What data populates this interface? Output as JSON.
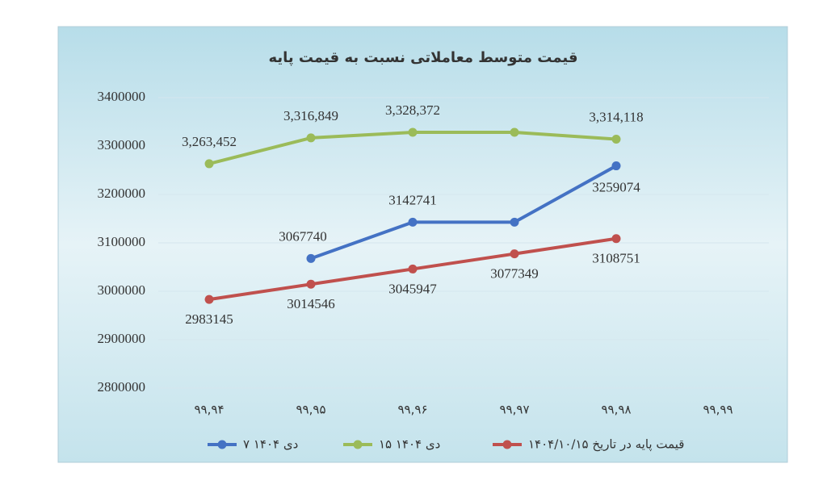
{
  "chart_data": {
    "type": "line",
    "title": "قیمت متوسط معاملاتی نسبت به قیمت پایه",
    "categories": [
      "۹۹,۹۴",
      "۹۹,۹۵",
      "۹۹,۹۶",
      "۹۹,۹۷",
      "۹۹,۹۸",
      "۹۹,۹۹"
    ],
    "series": [
      {
        "name": "۷ دی ۱۴۰۴",
        "color": "#4472c4",
        "values": [
          null,
          3067740,
          3142741,
          3142741,
          3259074,
          null
        ],
        "value_labels": [
          null,
          "3067740",
          "3142741",
          null,
          "3259074",
          null
        ]
      },
      {
        "name": "۱۵ دی ۱۴۰۴",
        "color": "#9bbb59",
        "values": [
          3263452,
          3316849,
          3328372,
          3328372,
          3314118,
          null
        ],
        "value_labels": [
          "3,263,452",
          "3,316,849",
          "3,328,372",
          null,
          "3,314,118",
          null
        ]
      },
      {
        "name": "قیمت پایه در تاریخ ۱۴۰۴/۱۰/۱۵",
        "color": "#c0504d",
        "values": [
          2983145,
          3014546,
          3045947,
          3077349,
          3108751,
          null
        ],
        "value_labels": [
          "2983145",
          "3014546",
          "3045947",
          "3077349",
          "3108751",
          null
        ]
      }
    ],
    "ylim": [
      2800000,
      3400000
    ],
    "yticks": [
      2800000,
      2900000,
      3000000,
      3100000,
      3200000,
      3300000,
      3400000
    ],
    "grid": true
  }
}
